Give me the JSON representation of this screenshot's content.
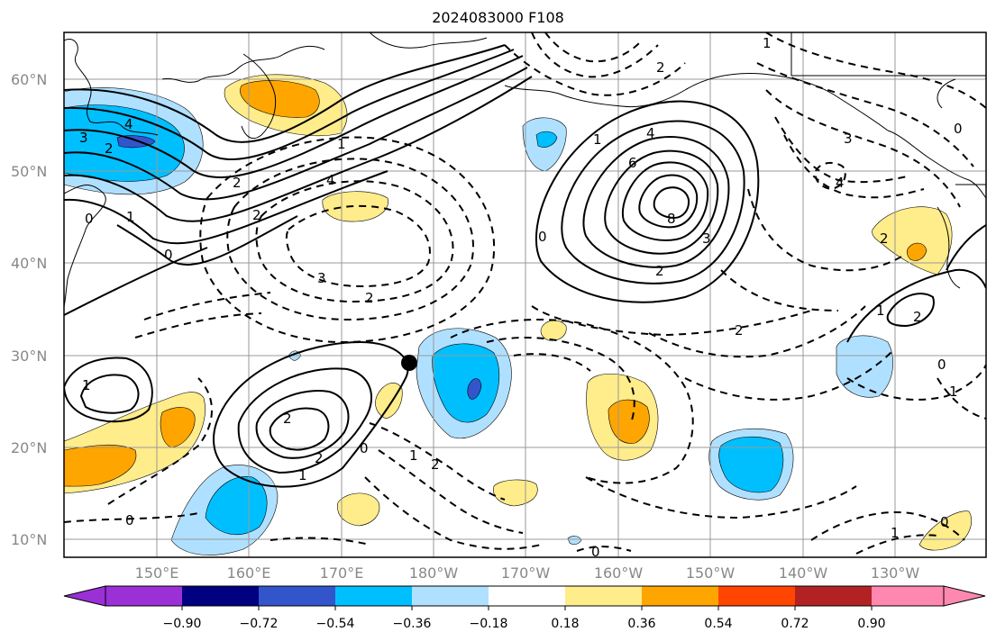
{
  "title": "2024083000 F108",
  "colors": {
    "frame": "#000000",
    "grid": "#999999",
    "neg_extreme": "#9b30d6",
    "neg_090": "#000080",
    "neg_072": "#3355cc",
    "neg_054": "#00bfff",
    "neg_036": "#b0e0ff",
    "neutral": "#ffffff",
    "pos_018": "#ffec8b",
    "pos_036": "#ffa500",
    "pos_054": "#ff4500",
    "pos_072": "#b22222",
    "pos_extreme": "#ff88b0",
    "coast": "#000000",
    "marker": "#000000"
  },
  "axes": {
    "lat_labels": [
      "60°N",
      "50°N",
      "40°N",
      "30°N",
      "20°N",
      "10°N"
    ],
    "lon_labels": [
      "150°E",
      "160°E",
      "170°E",
      "180°W",
      "170°W",
      "160°W",
      "150°W",
      "140°W",
      "130°W"
    ]
  },
  "colorbar": {
    "tick_labels": [
      "−0.90",
      "−0.72",
      "−0.54",
      "−0.36",
      "−0.18",
      "0.18",
      "0.36",
      "0.54",
      "0.72",
      "0.90"
    ]
  },
  "contour_labels": [
    {
      "text": "4"
    },
    {
      "text": "2"
    },
    {
      "text": "3"
    },
    {
      "text": "1"
    },
    {
      "text": "0"
    },
    {
      "text": "2"
    },
    {
      "text": "4"
    },
    {
      "text": "3"
    },
    {
      "text": "2"
    },
    {
      "text": "0"
    },
    {
      "text": "2"
    },
    {
      "text": "1"
    },
    {
      "text": "4"
    },
    {
      "text": "6"
    },
    {
      "text": "8"
    },
    {
      "text": "3"
    },
    {
      "text": "2"
    },
    {
      "text": "0"
    },
    {
      "text": "1"
    },
    {
      "text": "3"
    },
    {
      "text": "4"
    },
    {
      "text": "2"
    },
    {
      "text": "2"
    },
    {
      "text": "1"
    },
    {
      "text": "2"
    },
    {
      "text": "2"
    },
    {
      "text": "0"
    },
    {
      "text": "0"
    },
    {
      "text": "1"
    },
    {
      "text": "2"
    },
    {
      "text": "1"
    },
    {
      "text": "0"
    },
    {
      "text": "2"
    },
    {
      "text": "1"
    },
    {
      "text": "0"
    },
    {
      "text": "1"
    },
    {
      "text": "0"
    },
    {
      "text": "2"
    },
    {
      "text": "0"
    },
    {
      "text": "1"
    },
    {
      "text": "1"
    }
  ]
}
